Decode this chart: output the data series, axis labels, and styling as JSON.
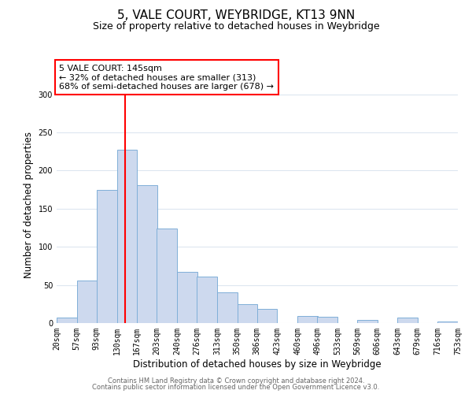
{
  "title": "5, VALE COURT, WEYBRIDGE, KT13 9NN",
  "subtitle": "Size of property relative to detached houses in Weybridge",
  "xlabel": "Distribution of detached houses by size in Weybridge",
  "ylabel": "Number of detached properties",
  "bin_edges": [
    20,
    57,
    93,
    130,
    167,
    203,
    240,
    276,
    313,
    350,
    386,
    423,
    460,
    496,
    533,
    569,
    606,
    643,
    679,
    716,
    753
  ],
  "bin_labels": [
    "20sqm",
    "57sqm",
    "93sqm",
    "130sqm",
    "167sqm",
    "203sqm",
    "240sqm",
    "276sqm",
    "313sqm",
    "350sqm",
    "386sqm",
    "423sqm",
    "460sqm",
    "496sqm",
    "533sqm",
    "569sqm",
    "606sqm",
    "643sqm",
    "679sqm",
    "716sqm",
    "753sqm"
  ],
  "bar_heights": [
    7,
    56,
    175,
    227,
    181,
    124,
    67,
    61,
    40,
    25,
    19,
    0,
    9,
    8,
    0,
    4,
    0,
    7,
    0,
    2
  ],
  "bar_color": "#cdd9ee",
  "bar_edge_color": "#7fafd8",
  "vline_x": 145,
  "vline_color": "red",
  "ylim": [
    0,
    310
  ],
  "yticks": [
    0,
    50,
    100,
    150,
    200,
    250,
    300
  ],
  "annotation_text": "5 VALE COURT: 145sqm\n← 32% of detached houses are smaller (313)\n68% of semi-detached houses are larger (678) →",
  "annotation_box_color": "#ffffff",
  "annotation_box_edge_color": "red",
  "footer_line1": "Contains HM Land Registry data © Crown copyright and database right 2024.",
  "footer_line2": "Contains public sector information licensed under the Open Government Licence v3.0.",
  "title_fontsize": 11,
  "subtitle_fontsize": 9,
  "axis_label_fontsize": 8.5,
  "tick_fontsize": 7,
  "annotation_fontsize": 8,
  "footer_fontsize": 6,
  "background_color": "#ffffff",
  "grid_color": "#dde6f0"
}
